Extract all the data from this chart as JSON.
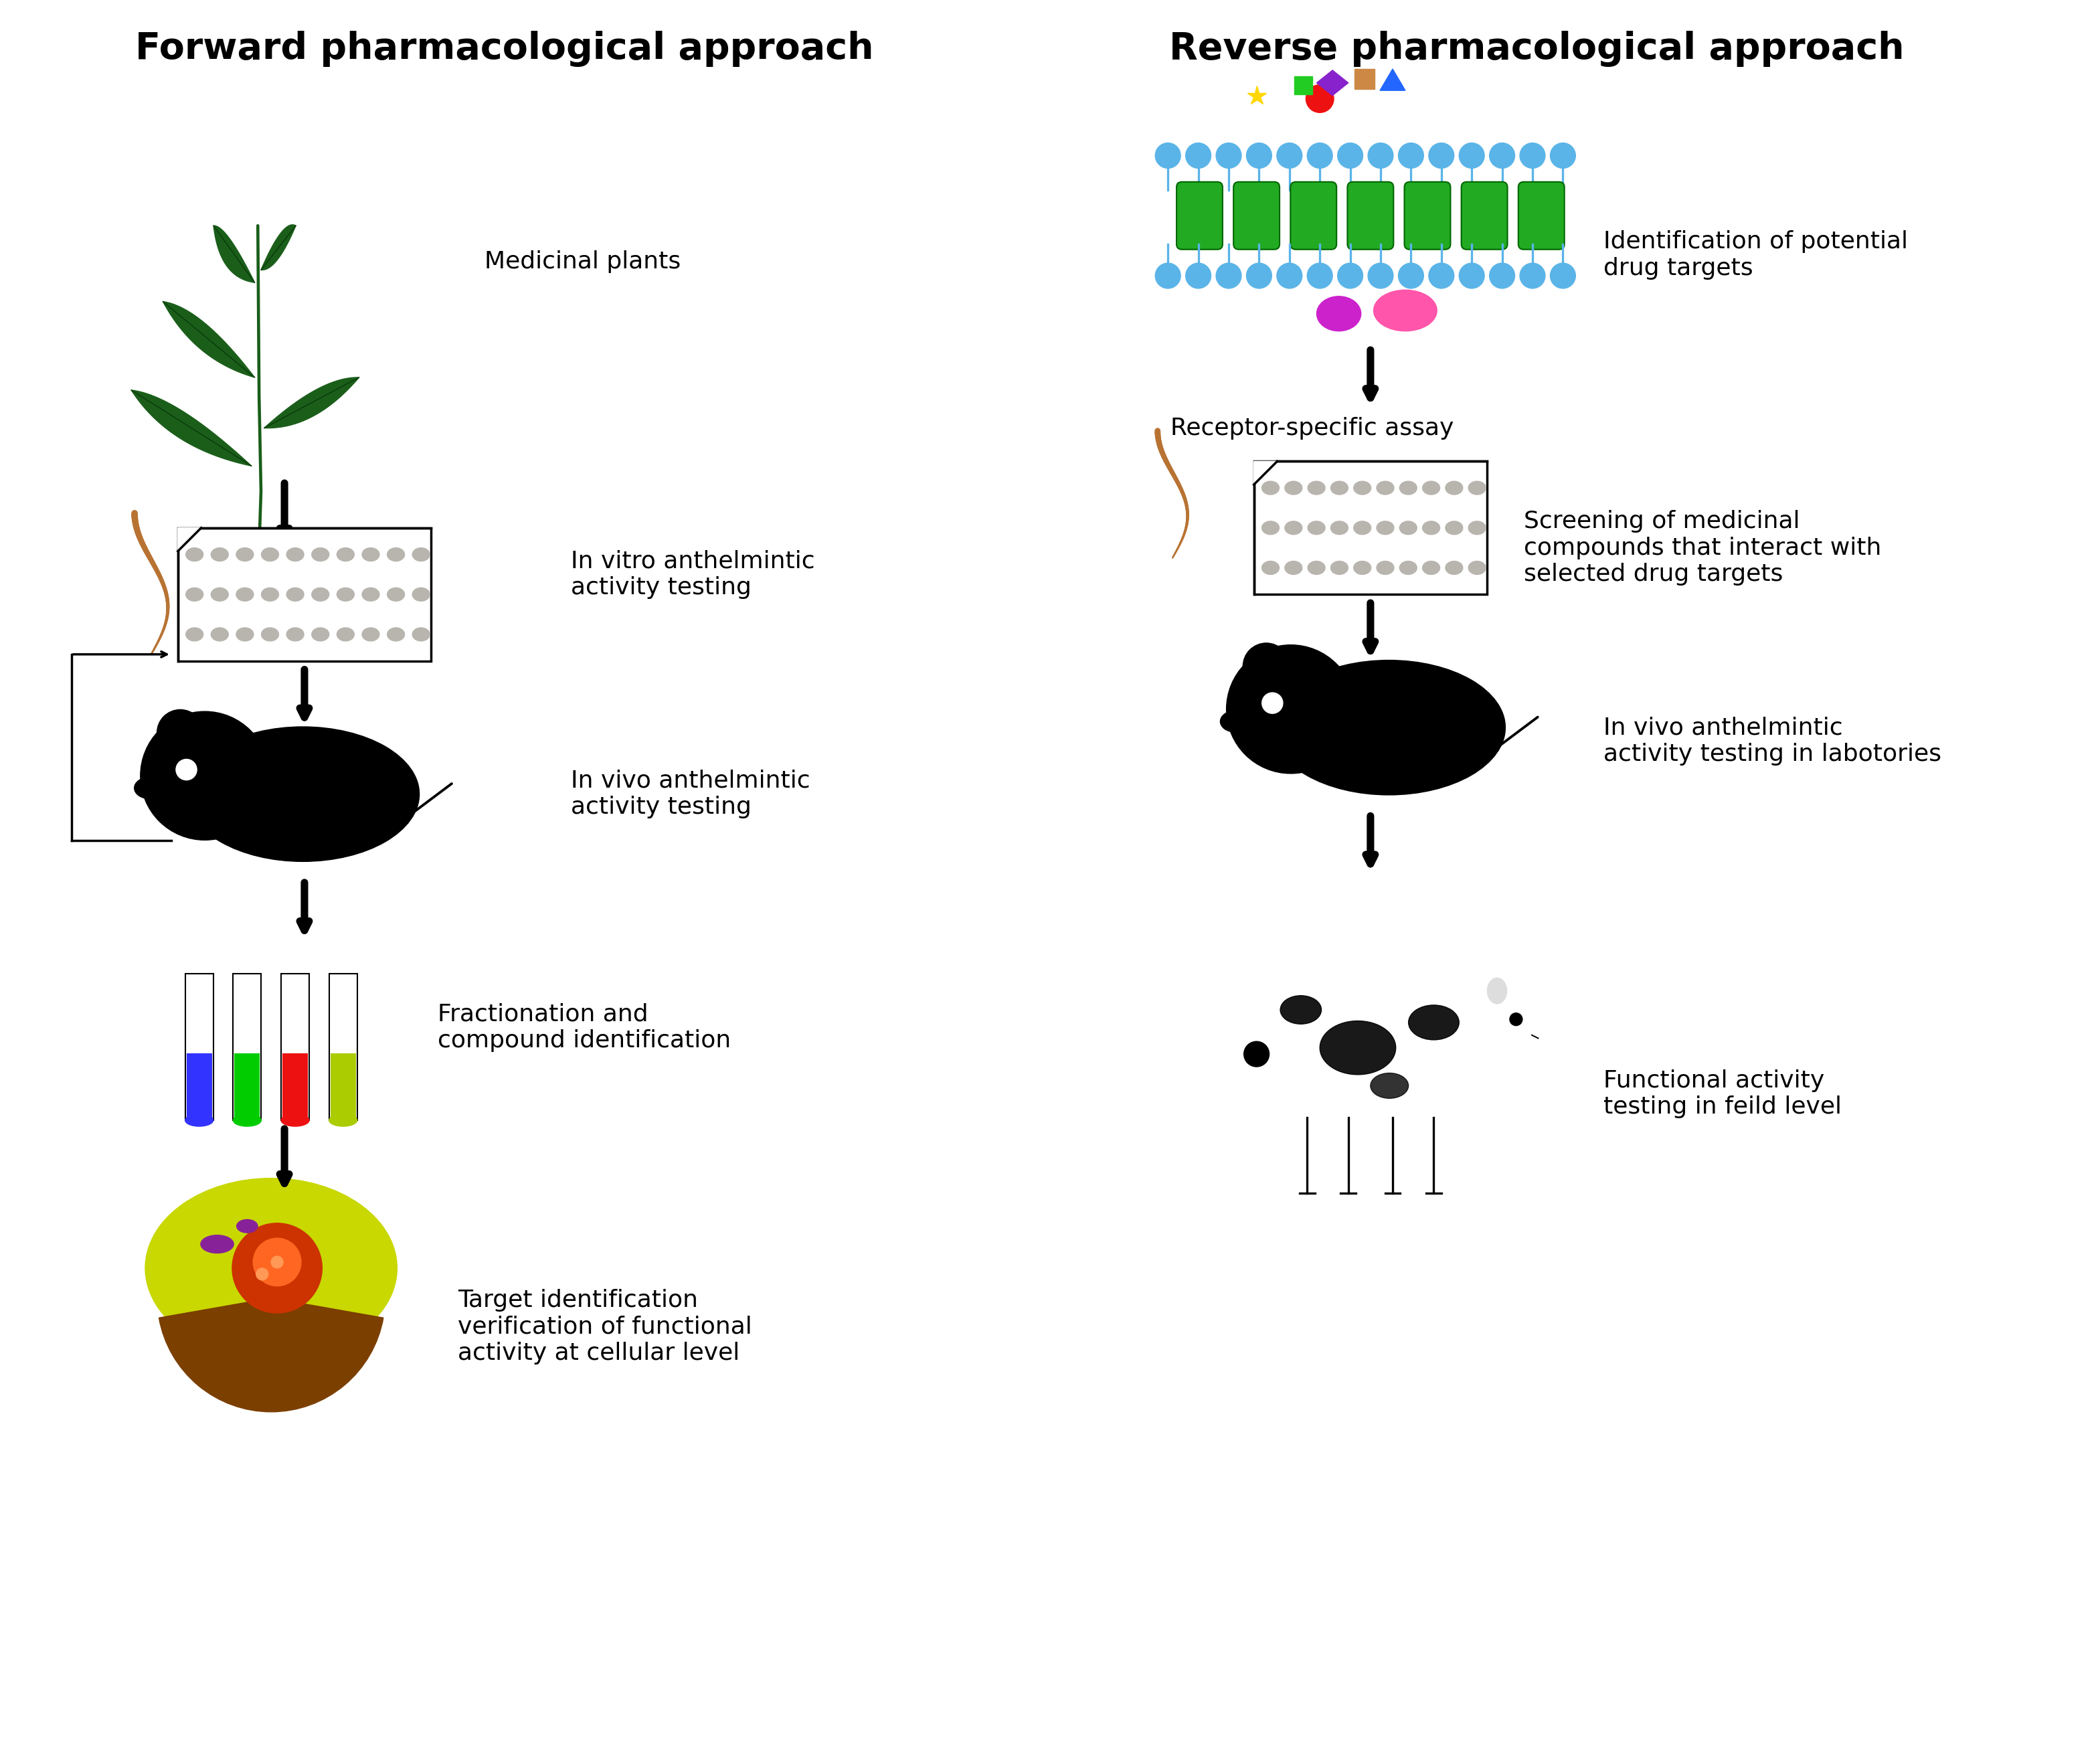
{
  "title_left": "Forward pharmacological approach",
  "title_right": "Reverse pharmacological approach",
  "bg_color": "#ffffff",
  "left_labels": [
    "Medicinal plants",
    "In vitro anthelmintic\nactivity testing",
    "In vivo anthelmintic\nactivity testing",
    "Fractionation and\ncompound identification",
    "Target identification\nverification of functional\nactivity at cellular level"
  ],
  "right_labels": [
    "Identification of potential\ndrug targets",
    "Receptor-specific assay",
    "Screening of medicinal\ncompounds that interact with\nselected drug targets",
    "In vivo anthelmintic\nactivity testing in labotories",
    "Functional activity\ntesting in feild level"
  ],
  "font_size_title": 40,
  "font_size_label": 26,
  "arrow_color": "#000000",
  "plant_color": "#1a5e1a",
  "worm_color": "#b87333",
  "well_gray": "#b8b4ae",
  "membrane_green": "#22aa22",
  "membrane_blue": "#5ab4e8"
}
